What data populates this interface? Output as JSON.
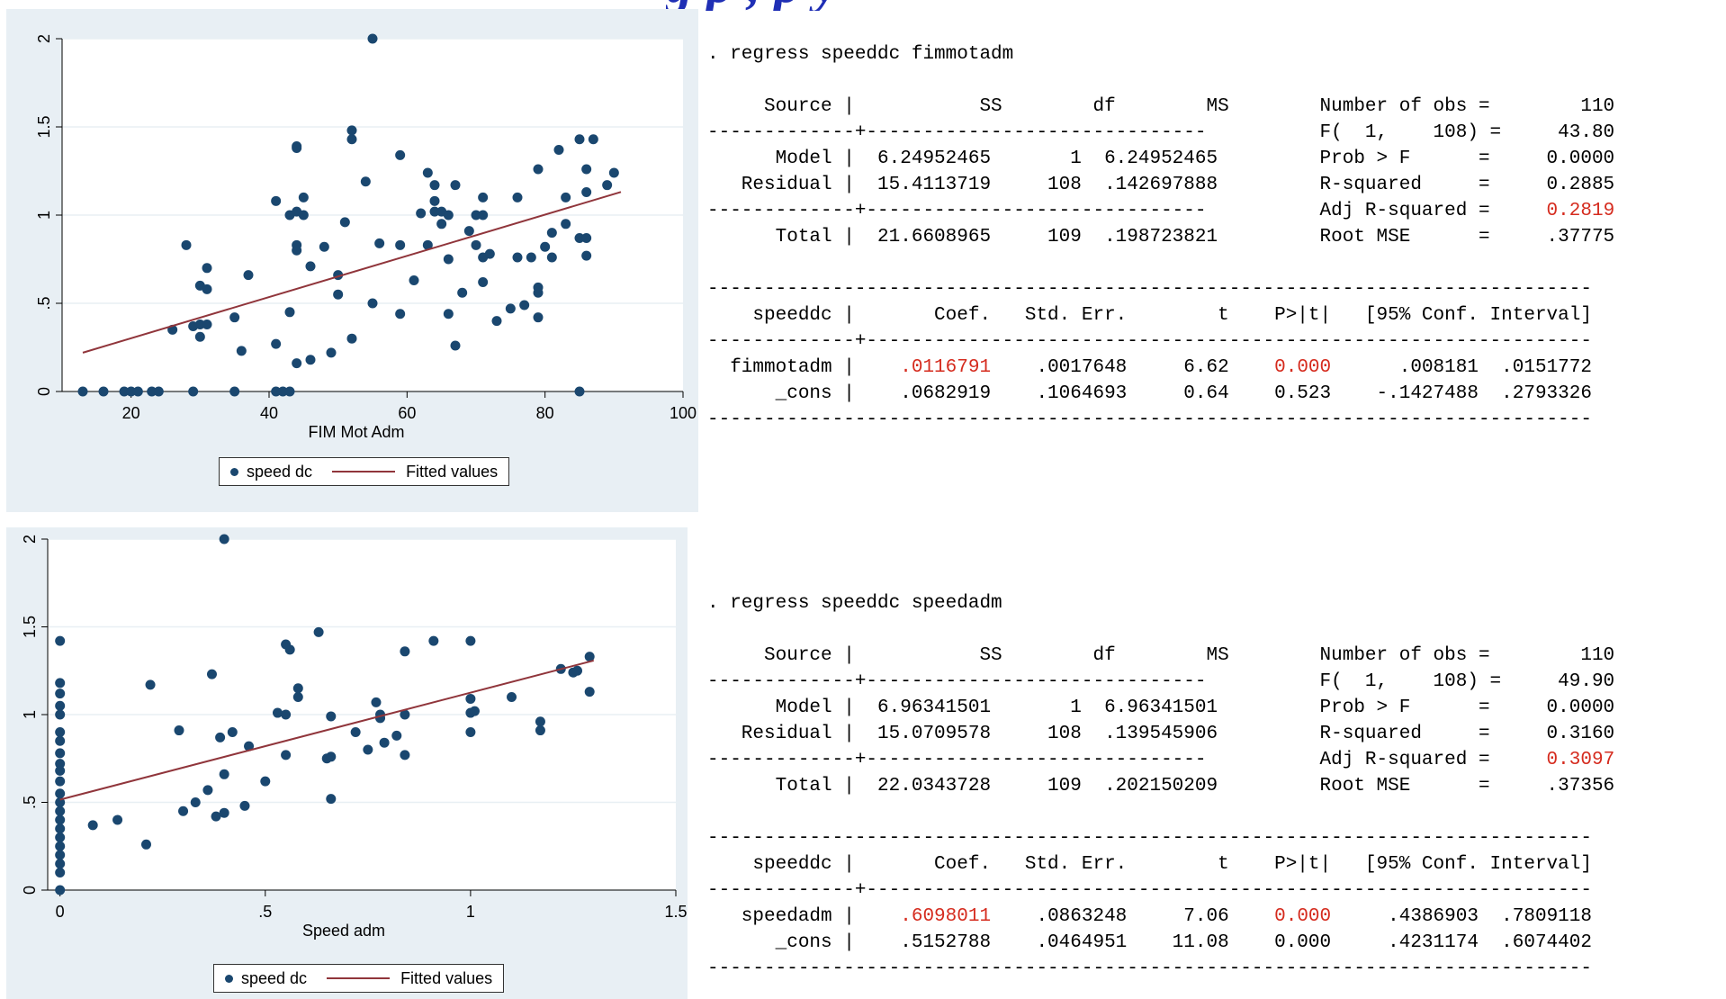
{
  "header": {
    "title_fragment": "g p                                    , p      y"
  },
  "legend": {
    "marker_label": "speed dc",
    "line_label": "Fitted values"
  },
  "colors": {
    "marker": "#1a476f",
    "fit_line": "#90353b",
    "panel_bg": "#e8eff4",
    "highlight": "#d52b1e"
  },
  "chart_data": [
    {
      "type": "scatter",
      "xlabel": "FIM Mot Adm",
      "ylabel": "",
      "xlim": [
        10,
        100
      ],
      "ylim": [
        0,
        2
      ],
      "x_ticks": [
        20,
        40,
        60,
        80,
        100
      ],
      "y_ticks": [
        0,
        0.5,
        1,
        1.5,
        2
      ],
      "x_tick_labels": [
        "20",
        "40",
        "60",
        "80",
        "100"
      ],
      "y_tick_labels": [
        "0",
        ".5",
        "1",
        "1.5",
        "2"
      ],
      "grid": true,
      "legend": "bottom",
      "series": [
        {
          "name": "speed dc",
          "points": [
            [
              13,
              0
            ],
            [
              16,
              0
            ],
            [
              19,
              0
            ],
            [
              20,
              0
            ],
            [
              21,
              0
            ],
            [
              23,
              0
            ],
            [
              24,
              0
            ],
            [
              29,
              0
            ],
            [
              35,
              0
            ],
            [
              41,
              0
            ],
            [
              42,
              0
            ],
            [
              43,
              0
            ],
            [
              85,
              0
            ],
            [
              26,
              0.35
            ],
            [
              28,
              0.83
            ],
            [
              29,
              0.37
            ],
            [
              30,
              0.38
            ],
            [
              30,
              0.31
            ],
            [
              30,
              0.6
            ],
            [
              31,
              0.38
            ],
            [
              31,
              0.7
            ],
            [
              31,
              0.58
            ],
            [
              35,
              0.42
            ],
            [
              36,
              0.23
            ],
            [
              37,
              0.66
            ],
            [
              41,
              1.08
            ],
            [
              41,
              0.27
            ],
            [
              43,
              0.45
            ],
            [
              43,
              1.0
            ],
            [
              44,
              1.39
            ],
            [
              44,
              1.38
            ],
            [
              44,
              1.02
            ],
            [
              44,
              0.83
            ],
            [
              44,
              0.8
            ],
            [
              44,
              0.16
            ],
            [
              45,
              1.1
            ],
            [
              45,
              1.0
            ],
            [
              46,
              0.71
            ],
            [
              46,
              0.18
            ],
            [
              48,
              0.82
            ],
            [
              49,
              0.22
            ],
            [
              50,
              0.66
            ],
            [
              50,
              0.55
            ],
            [
              51,
              0.96
            ],
            [
              52,
              1.48
            ],
            [
              52,
              1.43
            ],
            [
              52,
              0.3
            ],
            [
              54,
              1.19
            ],
            [
              55,
              2.0
            ],
            [
              55,
              0.5
            ],
            [
              56,
              0.84
            ],
            [
              59,
              1.34
            ],
            [
              59,
              0.83
            ],
            [
              59,
              0.44
            ],
            [
              61,
              0.63
            ],
            [
              62,
              1.01
            ],
            [
              63,
              1.24
            ],
            [
              63,
              0.83
            ],
            [
              64,
              1.17
            ],
            [
              64,
              1.08
            ],
            [
              64,
              1.02
            ],
            [
              65,
              1.02
            ],
            [
              65,
              0.95
            ],
            [
              66,
              1.0
            ],
            [
              66,
              0.75
            ],
            [
              66,
              0.44
            ],
            [
              67,
              1.17
            ],
            [
              67,
              0.26
            ],
            [
              68,
              0.56
            ],
            [
              69,
              0.91
            ],
            [
              70,
              0.83
            ],
            [
              70,
              1.0
            ],
            [
              71,
              1.1
            ],
            [
              71,
              1.0
            ],
            [
              71,
              0.62
            ],
            [
              71,
              0.76
            ],
            [
              72,
              0.78
            ],
            [
              73,
              0.4
            ],
            [
              75,
              0.47
            ],
            [
              76,
              1.1
            ],
            [
              76,
              0.76
            ],
            [
              77,
              0.49
            ],
            [
              78,
              0.76
            ],
            [
              79,
              1.26
            ],
            [
              79,
              0.56
            ],
            [
              79,
              0.59
            ],
            [
              79,
              0.42
            ],
            [
              80,
              0.82
            ],
            [
              81,
              0.9
            ],
            [
              81,
              0.76
            ],
            [
              82,
              1.37
            ],
            [
              83,
              1.1
            ],
            [
              83,
              0.95
            ],
            [
              85,
              1.43
            ],
            [
              85,
              0.87
            ],
            [
              86,
              0.87
            ],
            [
              86,
              1.13
            ],
            [
              86,
              0.77
            ],
            [
              86,
              1.26
            ],
            [
              87,
              1.43
            ],
            [
              89,
              1.17
            ],
            [
              90,
              1.24
            ]
          ]
        },
        {
          "name": "Fitted values",
          "line": [
            [
              13,
              0.2201
            ],
            [
              91,
              1.131
            ]
          ]
        }
      ]
    },
    {
      "type": "scatter",
      "xlabel": "Speed adm",
      "ylabel": "",
      "xlim": [
        -0.03,
        1.5
      ],
      "ylim": [
        0,
        2
      ],
      "x_ticks": [
        0,
        0.5,
        1,
        1.5
      ],
      "y_ticks": [
        0,
        0.5,
        1,
        1.5,
        2
      ],
      "x_tick_labels": [
        "0",
        ".5",
        "1",
        "1.5"
      ],
      "y_tick_labels": [
        "0",
        ".5",
        "1",
        "1.5",
        "2"
      ],
      "grid": true,
      "legend": "bottom",
      "series": [
        {
          "name": "speed dc",
          "points": [
            [
              0,
              0
            ],
            [
              0,
              0.1
            ],
            [
              0,
              0.15
            ],
            [
              0,
              0.2
            ],
            [
              0,
              0.25
            ],
            [
              0,
              0.3
            ],
            [
              0,
              0.35
            ],
            [
              0,
              0.4
            ],
            [
              0,
              0.45
            ],
            [
              0,
              0.5
            ],
            [
              0,
              0.55
            ],
            [
              0,
              0.62
            ],
            [
              0,
              0.68
            ],
            [
              0,
              0.72
            ],
            [
              0,
              0.78
            ],
            [
              0,
              0.85
            ],
            [
              0,
              0.9
            ],
            [
              0,
              1.0
            ],
            [
              0,
              1.05
            ],
            [
              0,
              1.12
            ],
            [
              0,
              1.18
            ],
            [
              0,
              1.42
            ],
            [
              0.08,
              0.37
            ],
            [
              0.14,
              0.4
            ],
            [
              0.21,
              0.26
            ],
            [
              0.22,
              1.17
            ],
            [
              0.29,
              0.91
            ],
            [
              0.3,
              0.45
            ],
            [
              0.33,
              0.5
            ],
            [
              0.36,
              0.57
            ],
            [
              0.37,
              1.23
            ],
            [
              0.38,
              0.42
            ],
            [
              0.39,
              0.87
            ],
            [
              0.4,
              0.44
            ],
            [
              0.4,
              0.66
            ],
            [
              0.4,
              2.0
            ],
            [
              0.42,
              0.9
            ],
            [
              0.45,
              0.48
            ],
            [
              0.46,
              0.82
            ],
            [
              0.5,
              0.62
            ],
            [
              0.53,
              1.01
            ],
            [
              0.55,
              1.0
            ],
            [
              0.55,
              0.77
            ],
            [
              0.56,
              1.37
            ],
            [
              0.55,
              1.4
            ],
            [
              0.58,
              1.1
            ],
            [
              0.58,
              1.15
            ],
            [
              0.63,
              1.47
            ],
            [
              0.65,
              0.75
            ],
            [
              0.66,
              0.76
            ],
            [
              0.66,
              0.99
            ],
            [
              0.66,
              0.52
            ],
            [
              0.72,
              0.9
            ],
            [
              0.75,
              0.8
            ],
            [
              0.77,
              1.07
            ],
            [
              0.78,
              1.0
            ],
            [
              0.78,
              0.98
            ],
            [
              0.79,
              0.84
            ],
            [
              0.82,
              0.88
            ],
            [
              0.84,
              1.36
            ],
            [
              0.84,
              0.77
            ],
            [
              0.84,
              1.0
            ],
            [
              0.91,
              1.42
            ],
            [
              1.0,
              1.42
            ],
            [
              1.0,
              1.09
            ],
            [
              1.0,
              1.01
            ],
            [
              1.0,
              0.9
            ],
            [
              1.01,
              1.02
            ],
            [
              1.1,
              1.1
            ],
            [
              1.17,
              0.96
            ],
            [
              1.17,
              0.91
            ],
            [
              1.22,
              1.26
            ],
            [
              1.25,
              1.24
            ],
            [
              1.26,
              1.25
            ],
            [
              1.29,
              1.33
            ],
            [
              1.29,
              1.13
            ]
          ]
        },
        {
          "name": "Fitted values",
          "line": [
            [
              0,
              0.5153
            ],
            [
              1.3,
              1.308
            ]
          ]
        }
      ]
    }
  ],
  "stata": [
    {
      "command": ". regress speeddc fimmotadm",
      "anova": {
        "source_hdr": "Source |",
        "ss_hdr": "SS",
        "df_hdr": "df",
        "ms_hdr": "MS",
        "rows": [
          {
            "source": "Model |",
            "ss": "6.24952465",
            "df": "1",
            "ms": "6.24952465"
          },
          {
            "source": "Residual |",
            "ss": "15.4113719",
            "df": "108",
            "ms": ".142697888"
          },
          {
            "source": "Total |",
            "ss": "21.6608965",
            "df": "109",
            "ms": ".198723821"
          }
        ]
      },
      "stats": [
        {
          "label": "Number of obs =",
          "value": "110"
        },
        {
          "label": "F(  1,    108) =",
          "value": "43.80"
        },
        {
          "label": "Prob > F      =",
          "value": "0.0000"
        },
        {
          "label": "R-squared     =",
          "value": "0.2885"
        },
        {
          "label": "Adj R-squared =",
          "value": "0.2819",
          "highlight": true
        },
        {
          "label": "Root MSE      =",
          "value": ".37775"
        }
      ],
      "coef": {
        "depvar": "speeddc |",
        "coef_hdr": "Coef.",
        "se_hdr": "Std. Err.",
        "t_hdr": "t",
        "p_hdr": "P>|t|",
        "ci_hdr": "[95% Conf. Interval]",
        "rows": [
          {
            "var": "fimmotadm |",
            "coef": ".0116791",
            "se": ".0017648",
            "t": "6.62",
            "p": "0.000",
            "ci_lo": ".008181",
            "ci_hi": ".0151772",
            "highlight": true
          },
          {
            "var": "_cons |",
            "coef": ".0682919",
            "se": ".1064693",
            "t": "0.64",
            "p": "0.523",
            "ci_lo": "-.1427488",
            "ci_hi": ".2793326"
          }
        ]
      }
    },
    {
      "command": ". regress speeddc speedadm",
      "anova": {
        "source_hdr": "Source |",
        "ss_hdr": "SS",
        "df_hdr": "df",
        "ms_hdr": "MS",
        "rows": [
          {
            "source": "Model |",
            "ss": "6.96341501",
            "df": "1",
            "ms": "6.96341501"
          },
          {
            "source": "Residual |",
            "ss": "15.0709578",
            "df": "108",
            "ms": ".139545906"
          },
          {
            "source": "Total |",
            "ss": "22.0343728",
            "df": "109",
            "ms": ".202150209"
          }
        ]
      },
      "stats": [
        {
          "label": "Number of obs =",
          "value": "110"
        },
        {
          "label": "F(  1,    108) =",
          "value": "49.90"
        },
        {
          "label": "Prob > F      =",
          "value": "0.0000"
        },
        {
          "label": "R-squared     =",
          "value": "0.3160"
        },
        {
          "label": "Adj R-squared =",
          "value": "0.3097",
          "highlight": true
        },
        {
          "label": "Root MSE      =",
          "value": ".37356"
        }
      ],
      "coef": {
        "depvar": "speeddc |",
        "coef_hdr": "Coef.",
        "se_hdr": "Std. Err.",
        "t_hdr": "t",
        "p_hdr": "P>|t|",
        "ci_hdr": "[95% Conf. Interval]",
        "rows": [
          {
            "var": "speedadm |",
            "coef": ".6098011",
            "se": ".0863248",
            "t": "7.06",
            "p": "0.000",
            "ci_lo": ".4386903",
            "ci_hi": ".7809118",
            "highlight": true
          },
          {
            "var": "_cons |",
            "coef": ".5152788",
            "se": ".0464951",
            "t": "11.08",
            "p": "0.000",
            "ci_lo": ".4231174",
            "ci_hi": ".6074402"
          }
        ]
      }
    }
  ]
}
